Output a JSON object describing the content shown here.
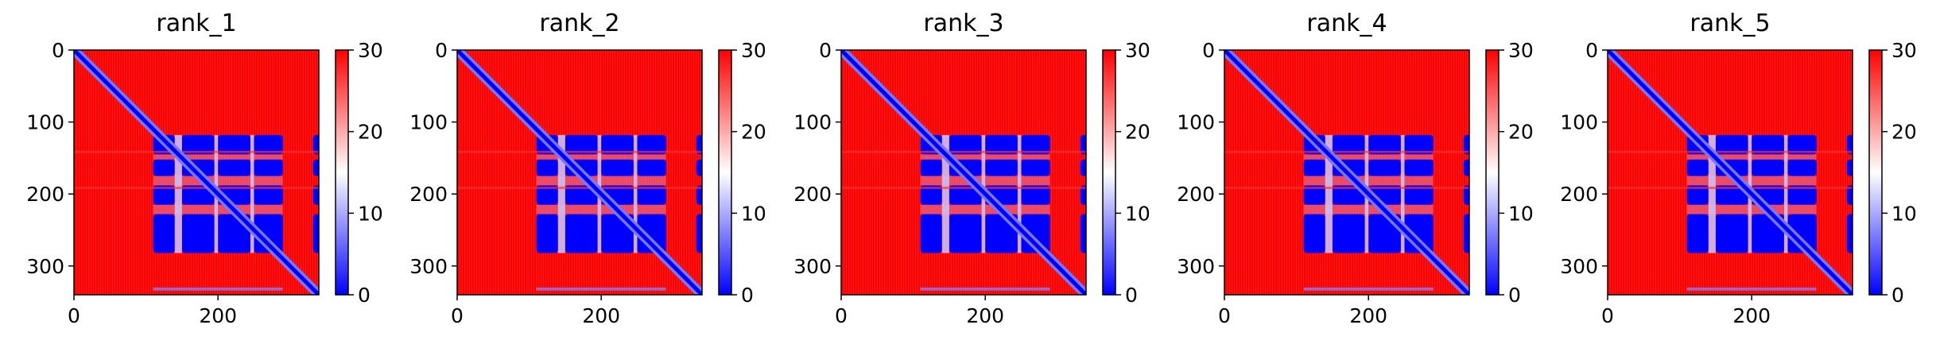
{
  "figure": {
    "panels": [
      {
        "title": "rank_1"
      },
      {
        "title": "rank_2"
      },
      {
        "title": "rank_3"
      },
      {
        "title": "rank_4"
      },
      {
        "title": "rank_5"
      }
    ]
  },
  "chart_data": [
    {
      "type": "heatmap",
      "title": "rank_1",
      "x_ticks": [
        0,
        200
      ],
      "y_ticks": [
        0,
        100,
        200,
        300
      ],
      "xlim": [
        0,
        340
      ],
      "ylim": [
        340,
        0
      ],
      "colorbar": {
        "ticks": [
          0,
          10,
          20,
          30
        ],
        "range": [
          0,
          30
        ],
        "colormap": "bwr",
        "colors": [
          "#0000ff",
          "#ffffff",
          "#ff0000"
        ]
      },
      "approximate_blocks": [
        {
          "rows": [
            0,
            340
          ],
          "cols": [
            0,
            340
          ],
          "value": 30
        },
        {
          "rows": [
            115,
            285
          ],
          "cols": [
            110,
            290
          ],
          "value": 2
        },
        {
          "rows": [
            0,
            340
          ],
          "cols": [
            0,
            340
          ],
          "feature": "diagonal",
          "value": 1
        }
      ]
    },
    {
      "type": "heatmap",
      "title": "rank_2",
      "x_ticks": [
        0,
        200
      ],
      "y_ticks": [
        0,
        100,
        200,
        300
      ],
      "xlim": [
        0,
        340
      ],
      "ylim": [
        340,
        0
      ],
      "colorbar": {
        "ticks": [
          0,
          10,
          20,
          30
        ],
        "range": [
          0,
          30
        ],
        "colormap": "bwr",
        "colors": [
          "#0000ff",
          "#ffffff",
          "#ff0000"
        ]
      },
      "approximate_blocks": [
        {
          "rows": [
            0,
            340
          ],
          "cols": [
            0,
            340
          ],
          "value": 30
        },
        {
          "rows": [
            115,
            285
          ],
          "cols": [
            110,
            290
          ],
          "value": 2
        },
        {
          "rows": [
            0,
            340
          ],
          "cols": [
            0,
            340
          ],
          "feature": "diagonal",
          "value": 1
        }
      ]
    },
    {
      "type": "heatmap",
      "title": "rank_3",
      "x_ticks": [
        0,
        200
      ],
      "y_ticks": [
        0,
        100,
        200,
        300
      ],
      "xlim": [
        0,
        340
      ],
      "ylim": [
        340,
        0
      ],
      "colorbar": {
        "ticks": [
          0,
          10,
          20,
          30
        ],
        "range": [
          0,
          30
        ],
        "colormap": "bwr",
        "colors": [
          "#0000ff",
          "#ffffff",
          "#ff0000"
        ]
      },
      "approximate_blocks": [
        {
          "rows": [
            0,
            340
          ],
          "cols": [
            0,
            340
          ],
          "value": 30
        },
        {
          "rows": [
            115,
            285
          ],
          "cols": [
            110,
            290
          ],
          "value": 2
        },
        {
          "rows": [
            0,
            340
          ],
          "cols": [
            0,
            340
          ],
          "feature": "diagonal",
          "value": 1
        }
      ]
    },
    {
      "type": "heatmap",
      "title": "rank_4",
      "x_ticks": [
        0,
        200
      ],
      "y_ticks": [
        0,
        100,
        200,
        300
      ],
      "xlim": [
        0,
        340
      ],
      "ylim": [
        340,
        0
      ],
      "colorbar": {
        "ticks": [
          0,
          10,
          20,
          30
        ],
        "range": [
          0,
          30
        ],
        "colormap": "bwr",
        "colors": [
          "#0000ff",
          "#ffffff",
          "#ff0000"
        ]
      },
      "approximate_blocks": [
        {
          "rows": [
            0,
            340
          ],
          "cols": [
            0,
            340
          ],
          "value": 30
        },
        {
          "rows": [
            115,
            285
          ],
          "cols": [
            110,
            290
          ],
          "value": 2
        },
        {
          "rows": [
            0,
            340
          ],
          "cols": [
            0,
            340
          ],
          "feature": "diagonal",
          "value": 1
        }
      ]
    },
    {
      "type": "heatmap",
      "title": "rank_5",
      "x_ticks": [
        0,
        200
      ],
      "y_ticks": [
        0,
        100,
        200,
        300
      ],
      "xlim": [
        0,
        340
      ],
      "ylim": [
        340,
        0
      ],
      "colorbar": {
        "ticks": [
          0,
          10,
          20,
          30
        ],
        "range": [
          0,
          30
        ],
        "colormap": "bwr",
        "colors": [
          "#0000ff",
          "#ffffff",
          "#ff0000"
        ]
      },
      "approximate_blocks": [
        {
          "rows": [
            0,
            340
          ],
          "cols": [
            0,
            340
          ],
          "value": 30
        },
        {
          "rows": [
            115,
            285
          ],
          "cols": [
            110,
            290
          ],
          "value": 2
        },
        {
          "rows": [
            0,
            340
          ],
          "cols": [
            0,
            340
          ],
          "feature": "diagonal",
          "value": 1
        }
      ]
    }
  ]
}
